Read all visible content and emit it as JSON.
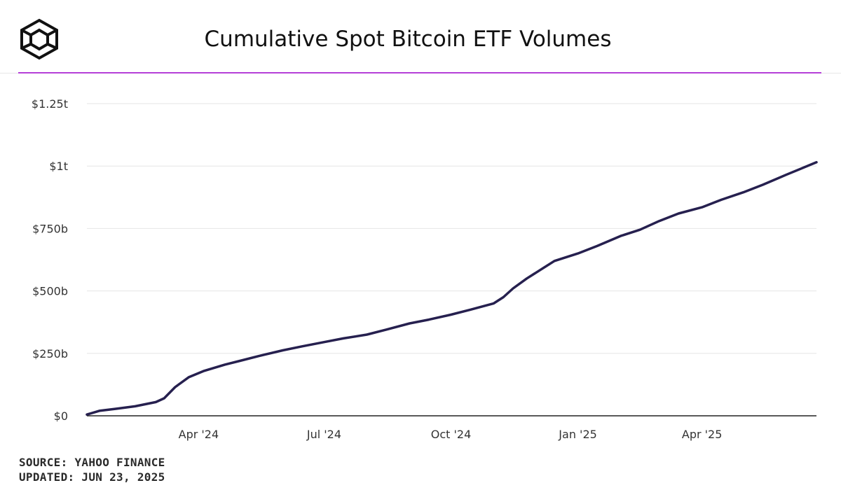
{
  "header": {
    "title": "Cumulative Spot Bitcoin ETF Volumes",
    "accent_color": "#b53fd8"
  },
  "footer": {
    "source": "SOURCE: YAHOO FINANCE",
    "updated": "UPDATED: JUN 23, 2025"
  },
  "chart_data": {
    "type": "line",
    "title": "Cumulative Spot Bitcoin ETF Volumes",
    "xlabel": "",
    "ylabel": "",
    "ylim": [
      0,
      1250
    ],
    "xlim": [
      "2024-01-11",
      "2025-06-23"
    ],
    "y_ticks": [
      0,
      250,
      500,
      750,
      1000,
      1250
    ],
    "y_tick_labels": [
      "$0",
      "$250b",
      "$500b",
      "$750b",
      "$1t",
      "$1.25t"
    ],
    "x_ticks": [
      "2024-04-01",
      "2024-07-01",
      "2024-10-01",
      "2025-01-01",
      "2025-04-01"
    ],
    "x_tick_labels": [
      "Apr '24",
      "Jul '24",
      "Oct '24",
      "Jan '25",
      "Apr '25"
    ],
    "grid": true,
    "line_color": "#26204f",
    "series": [
      {
        "values": [
          [
            "2024-01-11",
            5
          ],
          [
            "2024-01-20",
            20
          ],
          [
            "2024-02-01",
            28
          ],
          [
            "2024-02-15",
            38
          ],
          [
            "2024-03-01",
            55
          ],
          [
            "2024-03-07",
            70
          ],
          [
            "2024-03-15",
            115
          ],
          [
            "2024-03-25",
            155
          ],
          [
            "2024-04-05",
            180
          ],
          [
            "2024-04-20",
            205
          ],
          [
            "2024-05-01",
            220
          ],
          [
            "2024-05-15",
            240
          ],
          [
            "2024-06-01",
            262
          ],
          [
            "2024-06-15",
            278
          ],
          [
            "2024-07-01",
            295
          ],
          [
            "2024-07-15",
            310
          ],
          [
            "2024-08-01",
            325
          ],
          [
            "2024-08-15",
            345
          ],
          [
            "2024-09-01",
            370
          ],
          [
            "2024-09-15",
            385
          ],
          [
            "2024-10-01",
            405
          ],
          [
            "2024-10-15",
            425
          ],
          [
            "2024-11-01",
            450
          ],
          [
            "2024-11-08",
            475
          ],
          [
            "2024-11-15",
            510
          ],
          [
            "2024-11-25",
            550
          ],
          [
            "2024-12-05",
            585
          ],
          [
            "2024-12-15",
            620
          ],
          [
            "2025-01-01",
            650
          ],
          [
            "2025-01-15",
            680
          ],
          [
            "2025-02-01",
            720
          ],
          [
            "2025-02-15",
            745
          ],
          [
            "2025-03-01",
            780
          ],
          [
            "2025-03-15",
            810
          ],
          [
            "2025-04-01",
            835
          ],
          [
            "2025-04-15",
            865
          ],
          [
            "2025-05-01",
            895
          ],
          [
            "2025-05-15",
            925
          ],
          [
            "2025-06-01",
            965
          ],
          [
            "2025-06-23",
            1015
          ]
        ]
      }
    ]
  }
}
